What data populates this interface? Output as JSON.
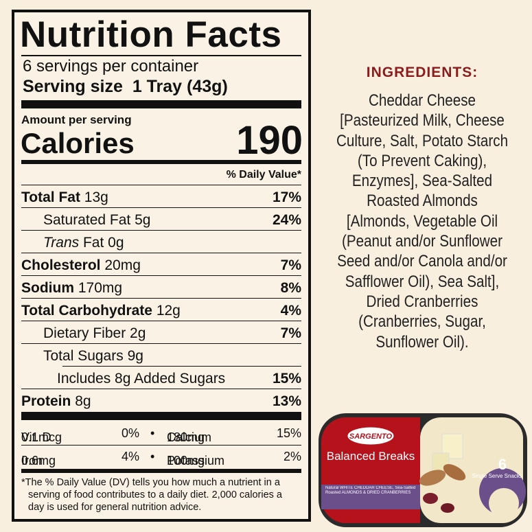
{
  "nutrition": {
    "title": "Nutrition Facts",
    "servings": "6 servings per container",
    "serving_size_label": "Serving size",
    "serving_size_value": "1 Tray (43g)",
    "amount_per_serving": "Amount per serving",
    "calories_label": "Calories",
    "calories": "190",
    "dv_header": "% Daily Value*",
    "rows": [
      {
        "name": "Total Fat",
        "amount": "13g",
        "dv": "17%"
      },
      {
        "name": "Saturated Fat",
        "amount": "5g",
        "dv": "24%"
      },
      {
        "name_italic": "Trans",
        "name": "Fat",
        "amount": "0g"
      },
      {
        "name": "Cholesterol",
        "amount": "20mg",
        "dv": "7%"
      },
      {
        "name": "Sodium",
        "amount": "170mg",
        "dv": "8%"
      },
      {
        "name": "Total Carbohydrate",
        "amount": "12g",
        "dv": "4%"
      },
      {
        "name": "Dietary Fiber",
        "amount": "2g",
        "dv": "7%"
      },
      {
        "name": "Total Sugars",
        "amount": "9g"
      },
      {
        "name": "Includes 8g Added Sugars",
        "dv": "15%"
      },
      {
        "name": "Protein",
        "amount": "8g",
        "dv": "13%"
      }
    ],
    "micros": [
      [
        {
          "name": "Vit. D",
          "amount": "0.1mcg",
          "dv": "0%"
        },
        {
          "name": "Calcium",
          "amount": "180mg",
          "dv": "15%"
        }
      ],
      [
        {
          "name": "Iron",
          "amount": "0.6mg",
          "dv": "4%"
        },
        {
          "name": "Potassium",
          "amount": "100mg",
          "dv": "2%"
        }
      ]
    ],
    "footnote": "*The % Daily Value (DV) tells you how much a nutrient in a serving of food contributes to a daily diet. 2,000 calories a day is used for general nutrition advice."
  },
  "ingredients": {
    "title": "INGREDIENTS:",
    "lines": [
      "Cheddar Cheese",
      "[Pasteurized Milk, Cheese",
      "Culture, Salt, Potato Starch",
      "(To Prevent Caking),",
      "Enzymes],  Sea-Salted",
      "Roasted Almonds",
      "[Almonds, Vegetable Oil",
      "(Peanut and/or Sunflower",
      "Seed and/or Canola and/or",
      "Safflower Oil), Sea Salt],",
      "Dried Cranberries",
      "(Cranberries, Sugar,",
      "Sunflower Oil)."
    ]
  },
  "product": {
    "brand": "SARGENTO",
    "name": "Balanced Breaks",
    "description": "Natural WHITE CHEDDAR CHEESE, Sea-Salted Roasted ALMONDS & DRIED CRANBERRIES",
    "count": "6",
    "count_label": "Single Serve Snacks"
  }
}
